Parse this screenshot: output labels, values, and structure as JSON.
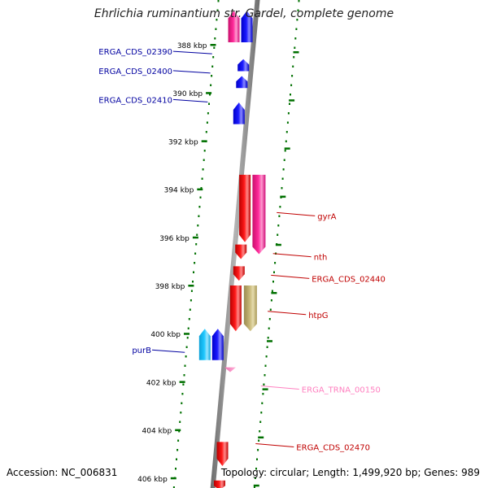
{
  "title": "Ehrlichia ruminantium str. Gardel, complete genome",
  "footer": {
    "accession": "Accession: NC_006831",
    "summary": "Topology: circular; Length: 1,499,920 bp; Genes: 989"
  },
  "colors": {
    "cds_forward": "#0000ff",
    "cds_reverse": "#ff0000",
    "trna": "#ff80c0",
    "pseudo_pink": "#ff1493",
    "rrna_like": "#c0b070",
    "cyan_feature": "#1ec8ff",
    "tick": "#007000",
    "backbone": "#808080"
  },
  "ruler": {
    "unit": "kbp",
    "ticks": [
      {
        "pos_kbp": 388,
        "label": "388 kbp"
      },
      {
        "pos_kbp": 390,
        "label": "390 kbp"
      },
      {
        "pos_kbp": 392,
        "label": "392 kbp"
      },
      {
        "pos_kbp": 394,
        "label": "394 kbp"
      },
      {
        "pos_kbp": 396,
        "label": "396 kbp"
      },
      {
        "pos_kbp": 398,
        "label": "398 kbp"
      },
      {
        "pos_kbp": 400,
        "label": "400 kbp"
      },
      {
        "pos_kbp": 402,
        "label": "402 kbp"
      },
      {
        "pos_kbp": 404,
        "label": "404 kbp"
      },
      {
        "pos_kbp": 406,
        "label": "406 kbp"
      }
    ]
  },
  "labels_left": [
    {
      "text": "ERGA_CDS_02390",
      "color": "#0000a0",
      "at_kbp": 387.6
    },
    {
      "text": "ERGA_CDS_02400",
      "color": "#0000a0",
      "at_kbp": 388.4
    },
    {
      "text": "ERGA_CDS_02410",
      "color": "#0000a0",
      "at_kbp": 389.6
    },
    {
      "text": "purB",
      "color": "#0000a0",
      "at_kbp": 400.0
    }
  ],
  "labels_right": [
    {
      "text": "gyrA",
      "color": "#c00000",
      "at_kbp": 394.5
    },
    {
      "text": "nth",
      "color": "#c00000",
      "at_kbp": 396.2
    },
    {
      "text": "ERGA_CDS_02440",
      "color": "#c00000",
      "at_kbp": 397.1
    },
    {
      "text": "htpG",
      "color": "#c00000",
      "at_kbp": 398.6
    },
    {
      "text": "ERGA_TRNA_00150",
      "color": "#ff80c0",
      "at_kbp": 401.7
    },
    {
      "text": "ERGA_CDS_02470",
      "color": "#c00000",
      "at_kbp": 404.1
    }
  ],
  "features": [
    {
      "name": "pink-top",
      "start_kbp": 386.6,
      "end_kbp": 387.9,
      "track": 1,
      "strand": "+",
      "type": "pseudo_pink"
    },
    {
      "name": "blue-top",
      "start_kbp": 386.6,
      "end_kbp": 387.9,
      "track": 2,
      "strand": "+",
      "type": "cds_forward"
    },
    {
      "name": "ERGA_CDS_02390",
      "start_kbp": 388.6,
      "end_kbp": 389.1,
      "track": 2,
      "strand": "+",
      "type": "cds_forward"
    },
    {
      "name": "ERGA_CDS_02400",
      "start_kbp": 389.3,
      "end_kbp": 389.8,
      "track": 2,
      "strand": "+",
      "type": "cds_forward"
    },
    {
      "name": "ERGA_CDS_02410",
      "start_kbp": 390.4,
      "end_kbp": 391.3,
      "track": 2,
      "strand": "+",
      "type": "cds_forward"
    },
    {
      "name": "gyrA",
      "start_kbp": 393.4,
      "end_kbp": 396.2,
      "track": 3,
      "strand": "-",
      "type": "cds_reverse"
    },
    {
      "name": "gyrA-pink",
      "start_kbp": 393.4,
      "end_kbp": 396.7,
      "track": 4,
      "strand": "-",
      "type": "pseudo_pink"
    },
    {
      "name": "nth",
      "start_kbp": 396.3,
      "end_kbp": 396.9,
      "track": 3,
      "strand": "-",
      "type": "cds_reverse"
    },
    {
      "name": "ERGA_CDS_02440",
      "start_kbp": 397.2,
      "end_kbp": 397.8,
      "track": 3,
      "strand": "-",
      "type": "cds_reverse"
    },
    {
      "name": "htpG",
      "start_kbp": 398.0,
      "end_kbp": 399.9,
      "track": 3,
      "strand": "-",
      "type": "cds_reverse"
    },
    {
      "name": "htpG-tan",
      "start_kbp": 398.0,
      "end_kbp": 399.9,
      "track": 4,
      "strand": "-",
      "type": "rrna_like"
    },
    {
      "name": "purB-cyan",
      "start_kbp": 399.8,
      "end_kbp": 401.1,
      "track": 1,
      "strand": "+",
      "type": "cyan_feature"
    },
    {
      "name": "purB",
      "start_kbp": 399.8,
      "end_kbp": 401.1,
      "track": 2,
      "strand": "+",
      "type": "cds_forward"
    },
    {
      "name": "ERGA_TRNA_00150",
      "start_kbp": 401.4,
      "end_kbp": 401.6,
      "track": 3,
      "strand": "-",
      "type": "trna"
    },
    {
      "name": "ERGA_CDS_02470",
      "start_kbp": 404.5,
      "end_kbp": 405.5,
      "track": 3,
      "strand": "-",
      "type": "cds_reverse"
    },
    {
      "name": "bottom-red",
      "start_kbp": 406.1,
      "end_kbp": 406.5,
      "track": 3,
      "strand": "-",
      "type": "cds_reverse"
    }
  ]
}
